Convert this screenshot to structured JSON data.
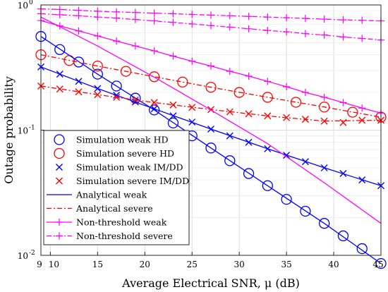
{
  "chart_data": {
    "type": "line",
    "xlabel": "Average Electrical SNR, μ (dB)",
    "ylabel": "Outage probability",
    "xlim": [
      9,
      45
    ],
    "ylim": [
      0.01,
      1
    ],
    "yscale": "log",
    "grid": true,
    "legend_placement": "bottom-left",
    "x_ticks": [
      9,
      10,
      15,
      20,
      25,
      30,
      35,
      40,
      45
    ],
    "y_ticks": [
      {
        "value": 0.01,
        "label": "10",
        "exp": "-2"
      },
      {
        "value": 0.1,
        "label": "10",
        "exp": "-1"
      },
      {
        "value": 1,
        "label": "10",
        "exp": "0"
      }
    ],
    "series": [
      {
        "name": "Simulation weak HD",
        "color": "#0000ff",
        "marker": "circle",
        "line": "none",
        "x": [
          9,
          11,
          13,
          15,
          17,
          19,
          21,
          23,
          25,
          27,
          29,
          31,
          33,
          35,
          37,
          39,
          41,
          43,
          45
        ],
        "y": [
          0.56,
          0.44,
          0.35,
          0.28,
          0.225,
          0.18,
          0.145,
          0.114,
          0.09,
          0.072,
          0.057,
          0.045,
          0.036,
          0.028,
          0.0225,
          0.018,
          0.0143,
          0.0113,
          0.0086
        ]
      },
      {
        "name": "Simulation severe HD",
        "color": "#ff0000",
        "marker": "circle",
        "line": "none",
        "x": [
          9,
          12,
          15,
          18,
          21,
          24,
          27,
          30,
          33,
          36,
          39,
          42,
          45
        ],
        "y": [
          0.4,
          0.36,
          0.325,
          0.295,
          0.267,
          0.242,
          0.22,
          0.2,
          0.183,
          0.167,
          0.153,
          0.139,
          0.127
        ]
      },
      {
        "name": "Simulation weak IM/DD",
        "color": "#0000ff",
        "marker": "x",
        "line": "none",
        "x": [
          9,
          11,
          13,
          15,
          17,
          19,
          21,
          23,
          25,
          27,
          29,
          31,
          33,
          35,
          37,
          39,
          41,
          43,
          45
        ],
        "y": [
          0.32,
          0.28,
          0.245,
          0.215,
          0.19,
          0.168,
          0.148,
          0.13,
          0.116,
          0.102,
          0.09,
          0.08,
          0.071,
          0.063,
          0.056,
          0.05,
          0.045,
          0.04,
          0.036
        ]
      },
      {
        "name": "Simulation severe IM/DD",
        "color": "#ff0000",
        "marker": "x",
        "line": "none",
        "x": [
          9,
          11,
          13,
          15,
          17,
          19,
          21,
          23,
          25,
          27,
          29,
          31,
          33,
          35,
          37,
          39,
          41,
          43,
          45
        ],
        "y": [
          0.225,
          0.213,
          0.202,
          0.192,
          0.183,
          0.174,
          0.166,
          0.159,
          0.152,
          0.146,
          0.14,
          0.135,
          0.13,
          0.126,
          0.122,
          0.118,
          0.115,
          0.12,
          0.12
        ]
      },
      {
        "name": "Analytical weak",
        "color": "#0000ff",
        "marker": "none",
        "line": "solid",
        "x": [
          9,
          15,
          21,
          27,
          33,
          39,
          45
        ],
        "y": [
          0.32,
          0.215,
          0.148,
          0.102,
          0.071,
          0.05,
          0.036
        ]
      },
      {
        "name": "Analytical weak",
        "color": "#0000ff",
        "marker": "none",
        "line": "solid",
        "legend": false,
        "x": [
          9,
          15,
          21,
          27,
          33,
          39,
          45
        ],
        "y": [
          0.56,
          0.28,
          0.145,
          0.072,
          0.036,
          0.018,
          0.0086
        ]
      },
      {
        "name": "Analytical severe",
        "color": "#ff0000",
        "marker": "none",
        "line": "dashdot",
        "x": [
          9,
          15,
          21,
          27,
          33,
          39,
          45
        ],
        "y": [
          0.4,
          0.325,
          0.267,
          0.22,
          0.183,
          0.153,
          0.127
        ]
      },
      {
        "name": "Analytical severe",
        "color": "#ff0000",
        "marker": "none",
        "line": "dashdot",
        "legend": false,
        "x": [
          9,
          15,
          21,
          27,
          33,
          39,
          45
        ],
        "y": [
          0.225,
          0.192,
          0.166,
          0.146,
          0.13,
          0.118,
          0.12
        ]
      },
      {
        "name": "Non-threshold weak",
        "color": "#ff00ff",
        "marker": "plus",
        "line": "solid",
        "x": [
          9,
          11,
          13,
          15,
          17,
          19,
          21,
          23,
          25,
          27,
          29,
          31,
          33,
          35,
          37,
          39,
          41,
          43,
          45
        ],
        "y": [
          0.75,
          0.68,
          0.62,
          0.565,
          0.515,
          0.47,
          0.43,
          0.39,
          0.355,
          0.325,
          0.295,
          0.27,
          0.245,
          0.222,
          0.2,
          0.183,
          0.166,
          0.15,
          0.137
        ]
      },
      {
        "name": "Non-threshold weak",
        "color": "#ff00ff",
        "marker": "none",
        "line": "solid",
        "legend": false,
        "x": [
          9,
          15,
          21,
          27,
          33,
          39,
          45
        ],
        "y": [
          0.8,
          0.47,
          0.265,
          0.145,
          0.078,
          0.038,
          0.018
        ]
      },
      {
        "name": "Non-threshold severe",
        "color": "#ff00ff",
        "marker": "plus",
        "line": "dashdot",
        "x": [
          9,
          11,
          13,
          15,
          17,
          19,
          21,
          23,
          25,
          27,
          29,
          31,
          33,
          35,
          37,
          39,
          41,
          43,
          45
        ],
        "y": [
          0.93,
          0.92,
          0.905,
          0.89,
          0.88,
          0.87,
          0.86,
          0.85,
          0.84,
          0.83,
          0.82,
          0.81,
          0.8,
          0.79,
          0.78,
          0.77,
          0.76,
          0.755,
          0.745
        ]
      },
      {
        "name": "Non-threshold severe",
        "color": "#ff00ff",
        "marker": "plus",
        "line": "dashdot",
        "legend": false,
        "x": [
          9,
          11,
          13,
          15,
          17,
          19,
          21,
          23,
          25,
          27,
          29,
          31,
          33,
          35,
          37,
          39,
          41,
          43,
          45
        ],
        "y": [
          0.85,
          0.835,
          0.82,
          0.8,
          0.785,
          0.765,
          0.745,
          0.725,
          0.705,
          0.685,
          0.665,
          0.645,
          0.625,
          0.61,
          0.59,
          0.575,
          0.555,
          0.54,
          0.525
        ]
      }
    ]
  }
}
